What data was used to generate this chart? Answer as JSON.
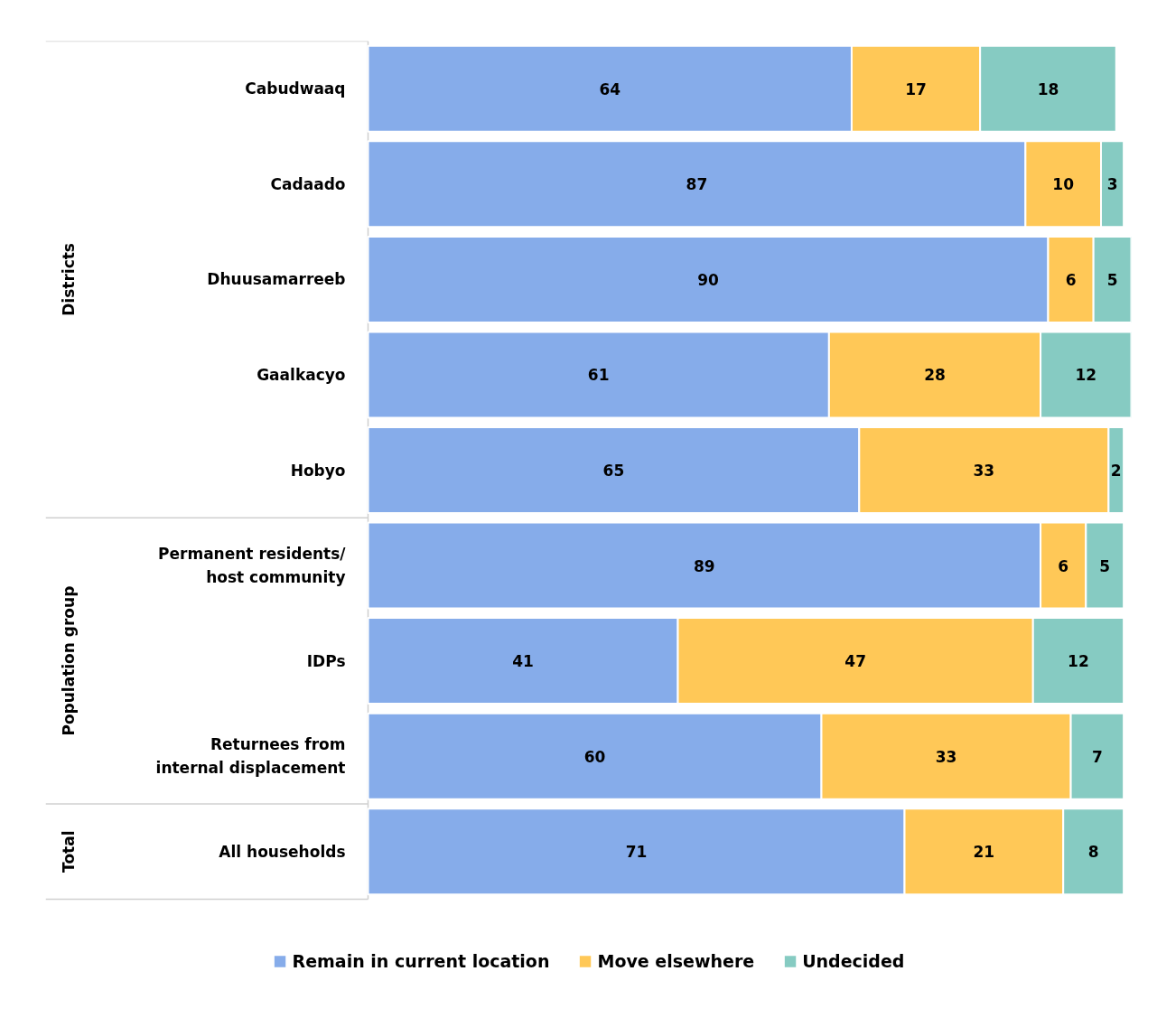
{
  "chart_data": {
    "type": "bar",
    "orientation": "horizontal",
    "stacked": true,
    "data_labels": true,
    "grid": false,
    "legend": "bottom",
    "categories": [
      "Cabudwaaq",
      "Cadaado",
      "Dhuusamarreeb",
      "Gaalkacyo",
      "Hobyo",
      "Permanent residents/\nhost community",
      "IDPs",
      "Returnees from\ninternal displacement",
      "All households"
    ],
    "series": [
      {
        "name": "Remain in current location",
        "color": "#86acea",
        "values": [
          64,
          87,
          90,
          61,
          65,
          89,
          41,
          60,
          71
        ]
      },
      {
        "name": "Move elsewhere",
        "color": "#ffc857",
        "values": [
          17,
          10,
          6,
          28,
          33,
          6,
          47,
          33,
          21
        ]
      },
      {
        "name": "Undecided",
        "color": "#86cbc2",
        "values": [
          18,
          3,
          5,
          12,
          2,
          5,
          12,
          7,
          8
        ]
      }
    ],
    "annotations": [
      "Districts",
      "Population group",
      "Total"
    ]
  }
}
